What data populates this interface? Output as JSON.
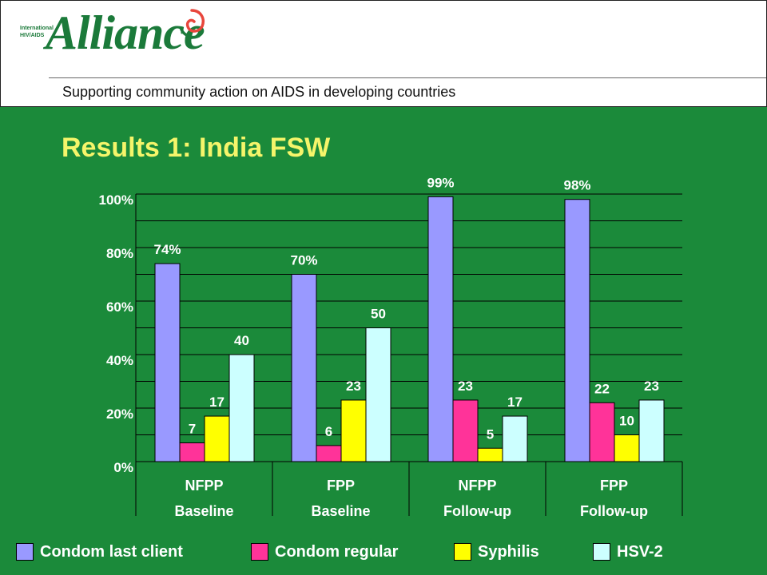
{
  "header": {
    "logo_small_line1": "International",
    "logo_small_line2": "HIV/AIDS",
    "logo_word": "Alliance",
    "tagline": "Supporting community action on AIDS in developing countries"
  },
  "slide_title": "Results 1: India FSW",
  "colors": {
    "background": "#1b8a3a",
    "title": "#f5f56a",
    "condom_last_client": "#9999ff",
    "condom_regular": "#ff3399",
    "syphilis": "#ffff00",
    "hsv2": "#ccffff"
  },
  "chart_data": {
    "type": "bar",
    "categories": [
      [
        "NFPP",
        "Baseline"
      ],
      [
        "FPP",
        "Baseline"
      ],
      [
        "NFPP",
        "Follow-up"
      ],
      [
        "FPP",
        "Follow-up"
      ]
    ],
    "series": [
      {
        "name": "Condom last client",
        "color": "#9999ff",
        "values": [
          74,
          70,
          99,
          98
        ],
        "labels": [
          "74%",
          "70%",
          "99%",
          "98%"
        ]
      },
      {
        "name": "Condom regular",
        "color": "#ff3399",
        "values": [
          7,
          6,
          23,
          22
        ],
        "labels": [
          "7",
          "6",
          "23",
          "22"
        ]
      },
      {
        "name": "Syphilis",
        "color": "#ffff00",
        "values": [
          17,
          23,
          5,
          10
        ],
        "labels": [
          "17",
          "23",
          "5",
          "10"
        ]
      },
      {
        "name": "HSV-2",
        "color": "#ccffff",
        "values": [
          40,
          50,
          17,
          23
        ],
        "labels": [
          "40",
          "50",
          "17",
          "23"
        ]
      }
    ],
    "y_ticks": [
      "0%",
      "20%",
      "40%",
      "60%",
      "80%",
      "100%"
    ],
    "ylim": [
      0,
      100
    ],
    "grid": true,
    "legend_position": "bottom"
  }
}
